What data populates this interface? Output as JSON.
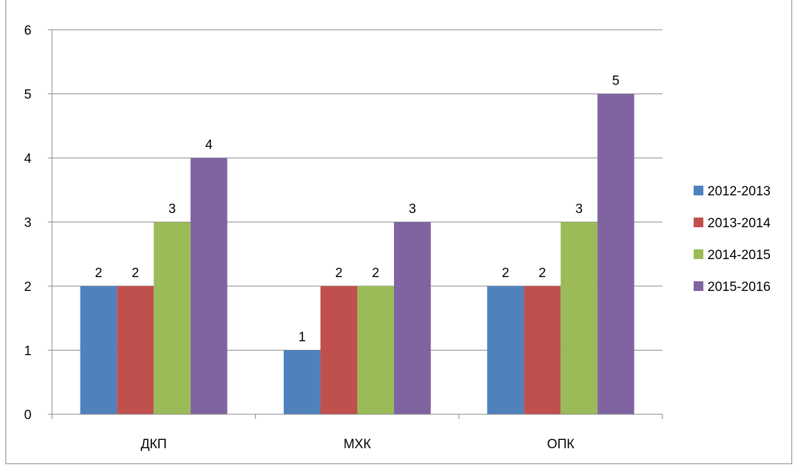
{
  "chart_data": {
    "type": "bar",
    "categories": [
      "ДКП",
      "МХК",
      "ОПК"
    ],
    "series": [
      {
        "name": "2012-2013",
        "values": [
          2,
          1,
          2
        ],
        "color": "#4F81BD"
      },
      {
        "name": "2013-2014",
        "values": [
          2,
          2,
          2
        ],
        "color": "#C0504D"
      },
      {
        "name": "2014-2015",
        "values": [
          3,
          2,
          3
        ],
        "color": "#9BBB59"
      },
      {
        "name": "2015-2016",
        "values": [
          4,
          3,
          5
        ],
        "color": "#8064A2"
      }
    ],
    "data_labels": [
      [
        "2",
        "1",
        "2"
      ],
      [
        "2",
        "2",
        "2"
      ],
      [
        "3",
        "2",
        "3"
      ],
      [
        "4",
        "3",
        "5"
      ]
    ],
    "ylim": [
      0,
      6
    ],
    "yticks": [
      "0",
      "1",
      "2",
      "3",
      "4",
      "5",
      "6"
    ],
    "grid": "horizontal",
    "legend_position": "right"
  }
}
